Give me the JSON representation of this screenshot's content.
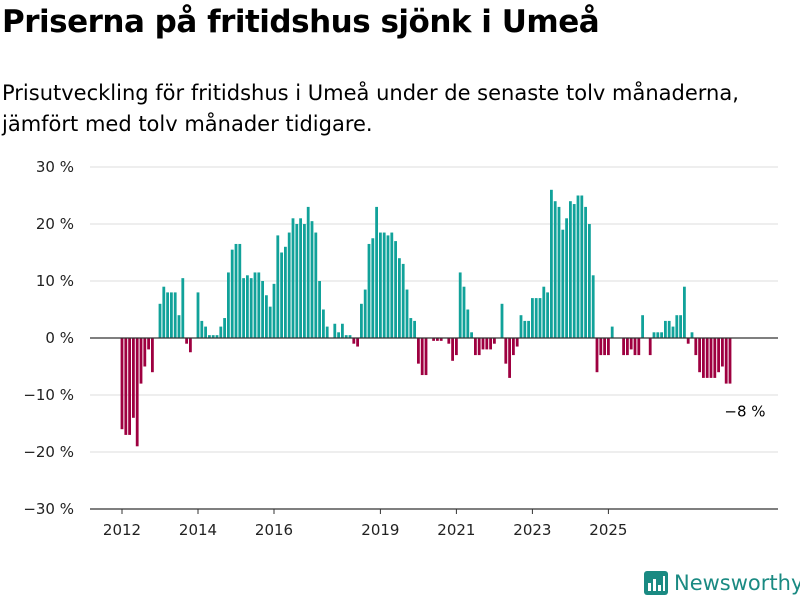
{
  "title": "Priserna på fritidshus sjönk i Umeå",
  "subtitle": "Prisutveckling för fritidshus i Umeå under de senaste tolv månaderna, jämfört med tolv månader tidigare.",
  "brand": "Newsworthy",
  "colors": {
    "positive": "#11a29a",
    "negative": "#9e0040",
    "grid": "#dddddd",
    "axis": "#333333",
    "brand": "#1a8a82"
  },
  "chart_data": {
    "type": "bar",
    "title": "",
    "xlabel": "",
    "ylabel": "",
    "ylim": [
      -30,
      30
    ],
    "y_ticks": [
      30,
      20,
      10,
      0,
      -10,
      -20,
      -30
    ],
    "y_tick_labels": [
      "30 %",
      "20 %",
      "10 %",
      "0 %",
      "−10 %",
      "−20 %",
      "−30 %"
    ],
    "x_tick_labels": [
      "2012",
      "2014",
      "2016",
      "2019",
      "2021",
      "2023",
      "2025"
    ],
    "x_tick_index": [
      0,
      20,
      40,
      68,
      88,
      108,
      128
    ],
    "values": [
      -16,
      -17,
      -17,
      -14,
      -19,
      -8,
      -5,
      -2,
      -6,
      0,
      6,
      9,
      8,
      8,
      8,
      4,
      10.5,
      -1,
      -2.5,
      0,
      8,
      3,
      2,
      0.5,
      0.5,
      0.5,
      2,
      3.5,
      11.5,
      15.5,
      16.5,
      16.5,
      10.5,
      11,
      10.5,
      11.5,
      11.5,
      10,
      7.5,
      5.5,
      9.5,
      18,
      15,
      16,
      18.5,
      21,
      20,
      21,
      20,
      23,
      20.5,
      18.5,
      10,
      5,
      2,
      0,
      2.5,
      1,
      2.5,
      0.5,
      0.5,
      -1,
      -1.5,
      6,
      8.5,
      16.5,
      17.5,
      23,
      18.5,
      18.5,
      18,
      18.5,
      17,
      14,
      13,
      8.5,
      3.5,
      3,
      -4.5,
      -6.5,
      -6.5,
      0,
      -0.5,
      -0.5,
      -0.5,
      0,
      -1,
      -4,
      -3,
      11.5,
      9,
      5,
      1,
      -3,
      -3,
      -2,
      -2,
      -2,
      -1,
      0,
      6,
      -4.5,
      -7,
      -3,
      -1.5,
      4,
      3,
      3,
      7,
      7,
      7,
      9,
      8,
      26,
      24,
      23,
      19,
      21,
      24,
      23.5,
      25,
      25,
      23,
      20,
      11,
      -6,
      -3,
      -3,
      -3,
      2,
      0,
      0,
      -3,
      -3,
      -2,
      -3,
      -3,
      4,
      0,
      -3,
      1,
      1,
      1,
      3,
      3,
      2,
      4,
      4,
      9,
      -1,
      1,
      -3,
      -6,
      -7,
      -7,
      -7,
      -7,
      -6,
      -5,
      -8,
      -8
    ],
    "annotation": "−8 %"
  }
}
